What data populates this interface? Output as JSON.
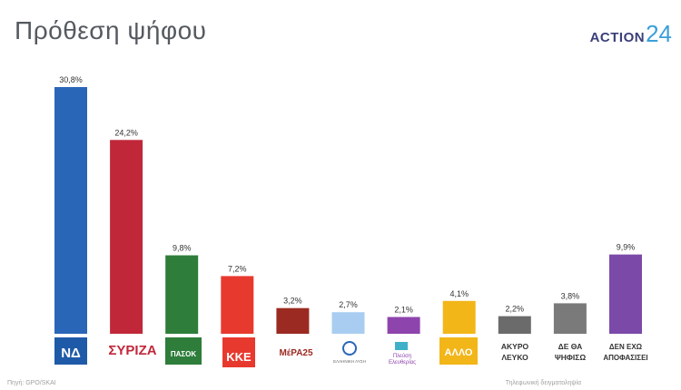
{
  "header": {
    "title": "Πρόθεση ψήφου",
    "brand_word": "ACTION",
    "brand_num": "24"
  },
  "footnotes": {
    "left": "Πηγή: GPO/SKAI",
    "right": "Τηλεφωνική δειγματοληψία"
  },
  "colors": {
    "nd": "#2a66b8",
    "syriza": "#c0283a",
    "pasok": "#2e7d3a",
    "kke": "#e8392f",
    "mera25": "#9b2a22",
    "elliniki_lysi": "#a9cdf0",
    "plefsi": "#8e44ad",
    "allo": "#f2b619",
    "akyro": "#6b6b6b",
    "de_tha": "#7a7a7a",
    "den_exo": "#7b4aa8"
  },
  "chart_data": {
    "type": "bar",
    "title": "Πρόθεση ψήφου",
    "xlabel": "",
    "ylabel": "",
    "ylim": [
      0,
      32
    ],
    "grid": false,
    "categories": [
      "ΝΔ",
      "ΣΥΡΙΖΑ",
      "ΠΑΣΟΚ",
      "ΚΚΕ",
      "ΜέΡΑ25",
      "ΕΛΛΗΝΙΚΗ ΛΥΣΗ",
      "Πλεύση Ελευθερίας",
      "ΑΛΛΟ",
      "ΑΚΥΡΟ ΛΕΥΚΟ",
      "ΔΕ ΘΑ ΨΗΦΙΣΩ",
      "ΔΕΝ ΕΧΩ ΑΠΟΦΑΣΙΣΕΙ"
    ],
    "values": [
      30.8,
      24.2,
      9.8,
      7.2,
      3.2,
      2.7,
      2.1,
      4.1,
      2.2,
      3.8,
      9.9
    ],
    "value_labels": [
      "30,8%",
      "24,2%",
      "9,8%",
      "7,2%",
      "3,2%",
      "2,7%",
      "2,1%",
      "4,1%",
      "2,2%",
      "3,8%",
      "9,9%"
    ],
    "bar_colors": [
      "#2a66b8",
      "#c0283a",
      "#2e7d3a",
      "#e8392f",
      "#9b2a22",
      "#a9cdf0",
      "#8e44ad",
      "#f2b619",
      "#6b6b6b",
      "#7a7a7a",
      "#7b4aa8"
    ]
  },
  "logos": {
    "nd": "ΝΔ",
    "syriza": "ΣΥΡΙΖΑ",
    "pasok": "ΠΑΣΟΚ",
    "kke": "ΚΚΕ",
    "mera25": "ΜέΡΑ25",
    "elliniki_lysi": "ΕΛΛΗΝΙΚΗ ΛΥΣΗ",
    "plefsi_top": "Πλεύση",
    "plefsi_bottom": "Ελευθερίας",
    "allo": "ΑΛΛΟ",
    "akyro_line1": "ΑΚΥΡΟ",
    "akyro_line2": "ΛΕΥΚΟ",
    "de_tha_line1": "ΔΕ ΘΑ",
    "de_tha_line2": "ΨΗΦΙΣΩ",
    "den_exo_line1": "ΔΕΝ ΕΧΩ",
    "den_exo_line2": "ΑΠΟΦΑΣΙΣΕΙ"
  }
}
